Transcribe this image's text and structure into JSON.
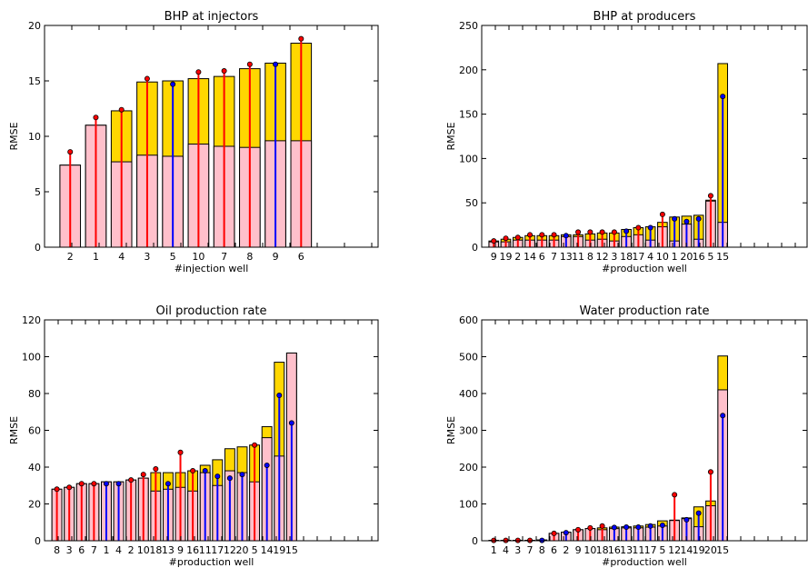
{
  "chart_data": [
    {
      "type": "bar",
      "title": "BHP at injectors",
      "xlabel": "#injection well",
      "ylabel": "RMSE",
      "ylim": [
        0,
        20
      ],
      "yticks": [
        0,
        5,
        10,
        15,
        20
      ],
      "categories": [
        "2",
        "1",
        "4",
        "3",
        "5",
        "10",
        "7",
        "8",
        "9",
        "6"
      ],
      "series": [
        {
          "values": [
            7.4,
            11.0,
            12.3,
            14.9,
            15.0,
            15.2,
            15.4,
            16.1,
            16.6,
            18.4
          ]
        },
        {
          "values": [
            7.4,
            11.0,
            7.7,
            8.3,
            8.2,
            9.3,
            9.1,
            9.0,
            9.6,
            9.6
          ]
        },
        {
          "values": [
            8.6,
            11.7,
            12.4,
            15.2,
            14.7,
            15.8,
            15.9,
            16.5,
            16.5,
            18.8
          ]
        }
      ],
      "xlim_max": 13
    },
    {
      "type": "bar",
      "title": "BHP at producers",
      "xlabel": "#production well",
      "ylabel": "RMSE",
      "ylim": [
        0,
        250
      ],
      "yticks": [
        0,
        50,
        100,
        150,
        200,
        250
      ],
      "categories": [
        "9",
        "19",
        "2",
        "14",
        "6",
        "7",
        "13",
        "11",
        "8",
        "12",
        "3",
        "18",
        "17",
        "4",
        "10",
        "1",
        "20",
        "16",
        "5",
        "15"
      ],
      "series": [
        {
          "values": [
            7,
            9,
            11,
            13,
            13,
            13,
            14,
            14,
            15,
            16,
            16,
            20,
            22,
            23,
            28,
            34,
            35,
            36,
            53,
            207
          ]
        },
        {
          "values": [
            6,
            6,
            8,
            8,
            8,
            8,
            12,
            12,
            8,
            9,
            7,
            12,
            14,
            8,
            23,
            7,
            26,
            9,
            52,
            28
          ]
        },
        {
          "values": [
            7,
            10,
            11,
            14,
            14,
            14,
            13,
            17,
            17,
            17,
            17,
            18,
            22,
            22,
            37,
            32,
            29,
            32,
            58,
            170
          ]
        }
      ],
      "xlim_max": 27
    },
    {
      "type": "bar",
      "title": "Oil production rate",
      "xlabel": "#production well",
      "ylabel": "RMSE",
      "ylim": [
        0,
        120
      ],
      "yticks": [
        0,
        20,
        40,
        60,
        80,
        100,
        120
      ],
      "categories": [
        "8",
        "3",
        "6",
        "7",
        "1",
        "4",
        "2",
        "10",
        "18",
        "13",
        "9",
        "16",
        "11",
        "17",
        "12",
        "20",
        "5",
        "14",
        "19",
        "15"
      ],
      "series": [
        {
          "values": [
            28,
            29,
            31,
            31,
            32,
            32,
            33,
            34,
            37,
            37,
            37,
            38,
            41,
            44,
            50,
            51,
            52,
            62,
            97,
            102
          ]
        },
        {
          "values": [
            28,
            29,
            31,
            31,
            32,
            32,
            33,
            34,
            27,
            28,
            29,
            27,
            37,
            30,
            38,
            37,
            32,
            56,
            46,
            102
          ]
        },
        {
          "values": [
            28,
            29,
            31,
            31,
            31,
            31,
            33,
            36,
            39,
            31,
            48,
            38,
            38,
            35,
            34,
            36,
            52,
            41,
            79,
            64
          ]
        }
      ],
      "xlim_max": 27
    },
    {
      "type": "bar",
      "title": "Water production rate",
      "xlabel": "#production well",
      "ylabel": "RMSE",
      "ylim": [
        0,
        600
      ],
      "yticks": [
        0,
        100,
        200,
        300,
        400,
        500,
        600
      ],
      "categories": [
        "1",
        "4",
        "3",
        "7",
        "8",
        "6",
        "2",
        "9",
        "10",
        "18",
        "16",
        "13",
        "11",
        "17",
        "5",
        "12",
        "14",
        "19",
        "20",
        "15"
      ],
      "series": [
        {
          "values": [
            1,
            1,
            1,
            1,
            2,
            20,
            23,
            30,
            33,
            35,
            37,
            38,
            40,
            44,
            54,
            56,
            62,
            92,
            108,
            502
          ]
        },
        {
          "values": [
            1,
            1,
            1,
            1,
            2,
            20,
            23,
            30,
            33,
            30,
            33,
            35,
            35,
            37,
            40,
            55,
            60,
            38,
            95,
            410
          ]
        },
        {
          "values": [
            1,
            1,
            1,
            1,
            1,
            20,
            22,
            30,
            35,
            40,
            36,
            37,
            37,
            40,
            42,
            125,
            57,
            75,
            187,
            340
          ]
        }
      ],
      "xlim_max": 27
    }
  ],
  "colors": {
    "bar_top": "#FFD700",
    "bar_inner": "#FFC0CB",
    "stem_up": "#FF0000",
    "stem_down": "#0000FF",
    "frame": "#000000"
  }
}
